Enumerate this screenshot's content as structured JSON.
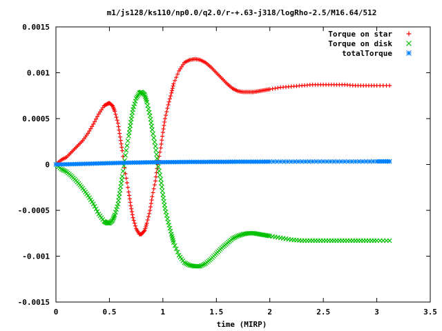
{
  "chart_data": {
    "type": "scatter",
    "title": "m1/js128/ks110/np0.0/q2.0/r-+.63-j318/logRho-2.5/M16.64/512",
    "xlabel": "time (MIRP)",
    "ylabel": "",
    "xlim": [
      0,
      3.5
    ],
    "ylim": [
      -0.0015,
      0.0015
    ],
    "x_ticks": [
      "0",
      "0.5",
      "1",
      "1.5",
      "2",
      "2.5",
      "3",
      "3.5"
    ],
    "y_ticks": [
      "-0.0015",
      "-0.001",
      "-0.0005",
      "0",
      "0.0005",
      "0.001",
      "0.0015"
    ],
    "legend_position": "top-right",
    "grid": false,
    "series": [
      {
        "name": "Torque on star",
        "marker": "+",
        "color": "#ff0000",
        "x": [
          0.0,
          0.05,
          0.1,
          0.15,
          0.2,
          0.25,
          0.3,
          0.35,
          0.4,
          0.45,
          0.48,
          0.5,
          0.53,
          0.55,
          0.58,
          0.6,
          0.62,
          0.65,
          0.68,
          0.7,
          0.72,
          0.75,
          0.78,
          0.8,
          0.83,
          0.85,
          0.88,
          0.9,
          0.93,
          0.95,
          0.98,
          1.0,
          1.02,
          1.05,
          1.08,
          1.1,
          1.15,
          1.2,
          1.25,
          1.3,
          1.35,
          1.4,
          1.45,
          1.5,
          1.55,
          1.6,
          1.65,
          1.7,
          1.75,
          1.8,
          1.85,
          1.9,
          1.95,
          2.0,
          2.1,
          2.2,
          2.3,
          2.4,
          2.5,
          2.6,
          2.7,
          2.8,
          2.9,
          3.0,
          3.12
        ],
        "y": [
          0.0,
          5e-05,
          8e-05,
          0.00014,
          0.0002,
          0.00026,
          0.00034,
          0.00044,
          0.00055,
          0.00064,
          0.00066,
          0.00067,
          0.00064,
          0.00058,
          0.00045,
          0.0003,
          0.00015,
          -0.0001,
          -0.0003,
          -0.00045,
          -0.00058,
          -0.0007,
          -0.00076,
          -0.00076,
          -0.00072,
          -0.00064,
          -0.0005,
          -0.00035,
          -0.00018,
          0.0,
          0.00018,
          0.00035,
          0.0005,
          0.00065,
          0.00078,
          0.00088,
          0.00102,
          0.00111,
          0.00114,
          0.00115,
          0.00114,
          0.00111,
          0.00106,
          0.001,
          0.00094,
          0.00088,
          0.00083,
          0.0008,
          0.00079,
          0.00079,
          0.00079,
          0.0008,
          0.00081,
          0.00082,
          0.00084,
          0.00085,
          0.00086,
          0.00087,
          0.00087,
          0.00087,
          0.00087,
          0.00086,
          0.00086,
          0.00086,
          0.00086
        ]
      },
      {
        "name": "Torque on disk",
        "marker": "x",
        "color": "#00c000",
        "x": [
          0.0,
          0.05,
          0.1,
          0.15,
          0.2,
          0.25,
          0.3,
          0.35,
          0.4,
          0.45,
          0.48,
          0.5,
          0.53,
          0.55,
          0.58,
          0.6,
          0.62,
          0.65,
          0.68,
          0.7,
          0.72,
          0.75,
          0.78,
          0.8,
          0.83,
          0.85,
          0.88,
          0.9,
          0.93,
          0.95,
          0.98,
          1.0,
          1.02,
          1.05,
          1.08,
          1.1,
          1.15,
          1.2,
          1.25,
          1.3,
          1.35,
          1.4,
          1.45,
          1.5,
          1.55,
          1.6,
          1.65,
          1.7,
          1.75,
          1.8,
          1.85,
          1.9,
          1.95,
          2.0,
          2.1,
          2.2,
          2.3,
          2.4,
          2.5,
          2.6,
          2.7,
          2.8,
          2.9,
          3.0,
          3.12
        ],
        "y": [
          0.0,
          -5e-05,
          -8e-05,
          -0.00013,
          -0.00019,
          -0.00026,
          -0.00034,
          -0.00043,
          -0.00054,
          -0.00062,
          -0.00064,
          -0.00064,
          -0.00061,
          -0.00055,
          -0.00043,
          -0.00028,
          -0.00013,
          0.0001,
          0.00031,
          0.00046,
          0.0006,
          0.00072,
          0.00078,
          0.00079,
          0.00076,
          0.00068,
          0.00053,
          0.00038,
          0.0002,
          2e-05,
          -0.00016,
          -0.00033,
          -0.00048,
          -0.00063,
          -0.00076,
          -0.00085,
          -0.00099,
          -0.00107,
          -0.0011,
          -0.00111,
          -0.00111,
          -0.00108,
          -0.00103,
          -0.00097,
          -0.00091,
          -0.00086,
          -0.00081,
          -0.00078,
          -0.00076,
          -0.00075,
          -0.00075,
          -0.00076,
          -0.00077,
          -0.00078,
          -0.0008,
          -0.00082,
          -0.00083,
          -0.00083,
          -0.00083,
          -0.00083,
          -0.00083,
          -0.00083,
          -0.00083,
          -0.00083,
          -0.00083
        ]
      },
      {
        "name": "totalTorque",
        "marker": "*",
        "color": "#0080ff",
        "x": [
          0.0,
          0.1,
          0.2,
          0.3,
          0.4,
          0.5,
          0.6,
          0.7,
          0.8,
          0.9,
          1.0,
          1.1,
          1.2,
          1.3,
          1.4,
          1.5,
          1.6,
          1.7,
          1.8,
          1.9,
          2.0,
          2.2,
          2.4,
          2.6,
          2.8,
          3.0,
          3.12
        ],
        "y": [
          0.0,
          2e-06,
          5e-06,
          8e-06,
          1.1e-05,
          1.4e-05,
          1.7e-05,
          2e-05,
          2.2e-05,
          2.4e-05,
          2.5e-05,
          2.6e-05,
          2.7e-05,
          2.8e-05,
          2.8e-05,
          2.9e-05,
          2.9e-05,
          3e-05,
          3e-05,
          3e-05,
          3.1e-05,
          3.1e-05,
          3.2e-05,
          3.2e-05,
          3.2e-05,
          3.3e-05,
          3.3e-05
        ]
      }
    ]
  }
}
